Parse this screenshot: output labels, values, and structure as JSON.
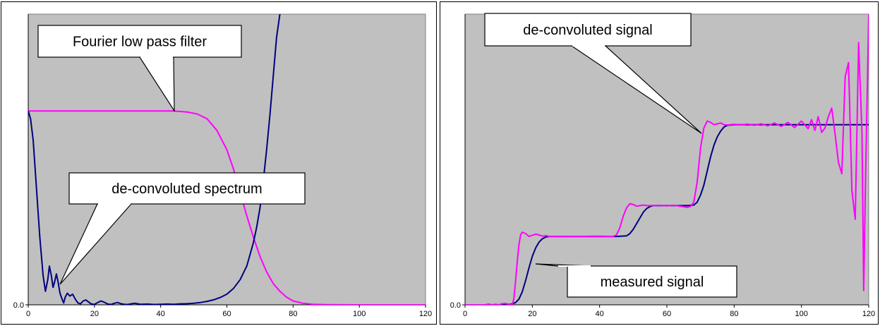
{
  "colors": {
    "plot_bg": "#c0c0c0",
    "magenta": "#ff00ff",
    "navy": "#000080",
    "callout_fill": "#ffffff"
  },
  "chart_data": [
    {
      "type": "line",
      "xlim": [
        0,
        120
      ],
      "ylim": [
        0,
        1.5
      ],
      "x_ticks": [
        "0",
        "20",
        "40",
        "60",
        "80",
        "100",
        "120"
      ],
      "y_ticks": [
        "0.0"
      ],
      "grid": false,
      "annotations": [
        "Fourier low pass filter",
        "de-convoluted spectrum"
      ],
      "series": [
        {
          "color": "#ff00ff",
          "points": [
            [
              0,
              1
            ],
            [
              10,
              1
            ],
            [
              20,
              1
            ],
            [
              30,
              1
            ],
            [
              40,
              1
            ],
            [
              44,
              1
            ],
            [
              48,
              0.995
            ],
            [
              51,
              0.985
            ],
            [
              54,
              0.96
            ],
            [
              57,
              0.9
            ],
            [
              60,
              0.8
            ],
            [
              62,
              0.7
            ],
            [
              64,
              0.58
            ],
            [
              66,
              0.46
            ],
            [
              68,
              0.35
            ],
            [
              70,
              0.25
            ],
            [
              72,
              0.17
            ],
            [
              74,
              0.11
            ],
            [
              76,
              0.07
            ],
            [
              78,
              0.04
            ],
            [
              80,
              0.02
            ],
            [
              83,
              0.008
            ],
            [
              86,
              0.003
            ],
            [
              90,
              0.001
            ],
            [
              100,
              0
            ],
            [
              120,
              0
            ]
          ]
        },
        {
          "color": "#000080",
          "points": [
            [
              0,
              1
            ],
            [
              0.7,
              0.96
            ],
            [
              1.5,
              0.85
            ],
            [
              2.5,
              0.6
            ],
            [
              3.5,
              0.35
            ],
            [
              4.5,
              0.15
            ],
            [
              5.2,
              0.07
            ],
            [
              5.9,
              0.13
            ],
            [
              6.4,
              0.2
            ],
            [
              7,
              0.15
            ],
            [
              7.5,
              0.09
            ],
            [
              8,
              0.12
            ],
            [
              8.5,
              0.16
            ],
            [
              9,
              0.12
            ],
            [
              9.6,
              0.06
            ],
            [
              10.2,
              0.03
            ],
            [
              10.7,
              0.01
            ],
            [
              11.2,
              0.04
            ],
            [
              11.8,
              0.06
            ],
            [
              12.6,
              0.045
            ],
            [
              13.4,
              0.055
            ],
            [
              14.2,
              0.03
            ],
            [
              15,
              0.01
            ],
            [
              15.8,
              0.005
            ],
            [
              16.6,
              0.02
            ],
            [
              17.4,
              0.025
            ],
            [
              18.2,
              0.015
            ],
            [
              19,
              0.005
            ],
            [
              20,
              0.002
            ],
            [
              21,
              0.012
            ],
            [
              22,
              0.02
            ],
            [
              23,
              0.013
            ],
            [
              24,
              0.004
            ],
            [
              25,
              0.002
            ],
            [
              26,
              0.008
            ],
            [
              27,
              0.012
            ],
            [
              28,
              0.006
            ],
            [
              29,
              0.003
            ],
            [
              30,
              0.002
            ],
            [
              32,
              0.008
            ],
            [
              34,
              0.003
            ],
            [
              36,
              0.004
            ],
            [
              38,
              0.002
            ],
            [
              40,
              0.003
            ],
            [
              42,
              0.004
            ],
            [
              44,
              0.003
            ],
            [
              46,
              0.005
            ],
            [
              48,
              0.006
            ],
            [
              50,
              0.008
            ],
            [
              52,
              0.012
            ],
            [
              54,
              0.018
            ],
            [
              56,
              0.026
            ],
            [
              58,
              0.038
            ],
            [
              60,
              0.055
            ],
            [
              62,
              0.085
            ],
            [
              64,
              0.13
            ],
            [
              66,
              0.2
            ],
            [
              68,
              0.32
            ],
            [
              69,
              0.4
            ],
            [
              70,
              0.5
            ],
            [
              71,
              0.64
            ],
            [
              72,
              0.8
            ],
            [
              73,
              0.98
            ],
            [
              74,
              1.18
            ],
            [
              75,
              1.38
            ],
            [
              76,
              1.5
            ]
          ]
        }
      ]
    },
    {
      "type": "line",
      "xlim": [
        0,
        120
      ],
      "ylim": [
        0,
        1.02
      ],
      "x_ticks": [
        "0",
        "20",
        "40",
        "60",
        "80",
        "100",
        "120"
      ],
      "y_ticks": [
        "0.0"
      ],
      "grid": false,
      "annotations": [
        "de-convoluted signal",
        "measured signal"
      ],
      "series": [
        {
          "color": "#000080",
          "points": [
            [
              0,
              0
            ],
            [
              12,
              0
            ],
            [
              14,
              0.003
            ],
            [
              15,
              0.008
            ],
            [
              16,
              0.02
            ],
            [
              17,
              0.045
            ],
            [
              18,
              0.085
            ],
            [
              19,
              0.13
            ],
            [
              20,
              0.17
            ],
            [
              21,
              0.2
            ],
            [
              22,
              0.22
            ],
            [
              23,
              0.232
            ],
            [
              24,
              0.238
            ],
            [
              25,
              0.24
            ],
            [
              30,
              0.24
            ],
            [
              40,
              0.24
            ],
            [
              45,
              0.24
            ],
            [
              48,
              0.242
            ],
            [
              49,
              0.25
            ],
            [
              50,
              0.265
            ],
            [
              51,
              0.285
            ],
            [
              52,
              0.305
            ],
            [
              53,
              0.325
            ],
            [
              54,
              0.338
            ],
            [
              55,
              0.345
            ],
            [
              56,
              0.348
            ],
            [
              60,
              0.348
            ],
            [
              66,
              0.348
            ],
            [
              68,
              0.35
            ],
            [
              69,
              0.36
            ],
            [
              70,
              0.385
            ],
            [
              71,
              0.42
            ],
            [
              72,
              0.47
            ],
            [
              73,
              0.52
            ],
            [
              74,
              0.56
            ],
            [
              75,
              0.59
            ],
            [
              76,
              0.61
            ],
            [
              77,
              0.624
            ],
            [
              78,
              0.63
            ],
            [
              80,
              0.632
            ],
            [
              100,
              0.632
            ],
            [
              120,
              0.632
            ]
          ]
        },
        {
          "color": "#ff00ff",
          "points": [
            [
              0,
              0
            ],
            [
              6,
              0
            ],
            [
              7,
              0.003
            ],
            [
              8,
              0
            ],
            [
              9,
              0.002
            ],
            [
              10,
              0
            ],
            [
              11,
              0.004
            ],
            [
              12,
              0.005
            ],
            [
              13,
              0.002
            ],
            [
              14,
              0
            ],
            [
              14.5,
              0.02
            ],
            [
              15,
              0.08
            ],
            [
              15.5,
              0.15
            ],
            [
              16,
              0.21
            ],
            [
              16.5,
              0.245
            ],
            [
              17,
              0.255
            ],
            [
              18,
              0.25
            ],
            [
              19,
              0.24
            ],
            [
              20,
              0.244
            ],
            [
              21,
              0.248
            ],
            [
              22,
              0.245
            ],
            [
              23,
              0.241
            ],
            [
              24,
              0.243
            ],
            [
              25,
              0.24
            ],
            [
              30,
              0.24
            ],
            [
              40,
              0.241
            ],
            [
              44,
              0.24
            ],
            [
              45,
              0.245
            ],
            [
              46,
              0.27
            ],
            [
              47,
              0.31
            ],
            [
              48,
              0.34
            ],
            [
              49,
              0.355
            ],
            [
              50,
              0.352
            ],
            [
              51,
              0.346
            ],
            [
              52,
              0.348
            ],
            [
              53,
              0.35
            ],
            [
              54,
              0.348
            ],
            [
              56,
              0.348
            ],
            [
              58,
              0.349
            ],
            [
              60,
              0.347
            ],
            [
              62,
              0.349
            ],
            [
              64,
              0.346
            ],
            [
              66,
              0.342
            ],
            [
              67,
              0.345
            ],
            [
              68,
              0.36
            ],
            [
              69,
              0.43
            ],
            [
              70,
              0.55
            ],
            [
              71,
              0.62
            ],
            [
              72,
              0.645
            ],
            [
              73,
              0.64
            ],
            [
              74,
              0.632
            ],
            [
              75,
              0.635
            ],
            [
              76,
              0.638
            ],
            [
              77,
              0.632
            ],
            [
              78,
              0.631
            ],
            [
              80,
              0.633
            ],
            [
              82,
              0.631
            ],
            [
              84,
              0.634
            ],
            [
              86,
              0.63
            ],
            [
              88,
              0.635
            ],
            [
              90,
              0.628
            ],
            [
              92,
              0.638
            ],
            [
              94,
              0.626
            ],
            [
              96,
              0.64
            ],
            [
              98,
              0.622
            ],
            [
              100,
              0.645
            ],
            [
              102,
              0.618
            ],
            [
              103,
              0.65
            ],
            [
              104,
              0.612
            ],
            [
              105,
              0.66
            ],
            [
              106,
              0.605
            ],
            [
              107,
              0.62
            ],
            [
              108,
              0.66
            ],
            [
              109,
              0.69
            ],
            [
              110,
              0.6
            ],
            [
              111,
              0.5
            ],
            [
              112,
              0.46
            ],
            [
              113,
              0.8
            ],
            [
              114,
              0.85
            ],
            [
              115,
              0.4
            ],
            [
              116,
              0.3
            ],
            [
              117,
              0.92
            ],
            [
              118,
              0.6
            ],
            [
              118.5,
              0.05
            ],
            [
              119,
              0.4
            ],
            [
              120,
              1.02
            ]
          ]
        }
      ]
    }
  ]
}
